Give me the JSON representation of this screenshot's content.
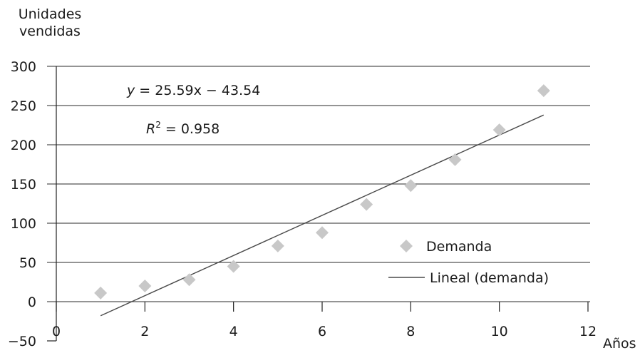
{
  "chart_data": {
    "type": "scatter",
    "ylabel_line1": "Unidades",
    "ylabel_line2": "vendidas",
    "xlabel": "Años",
    "xlim": [
      0,
      12
    ],
    "ylim": [
      -50,
      300
    ],
    "x_ticks": [
      {
        "value": 0,
        "label": "0"
      },
      {
        "value": 2,
        "label": "2"
      },
      {
        "value": 4,
        "label": "4"
      },
      {
        "value": 6,
        "label": "6"
      },
      {
        "value": 8,
        "label": "8"
      },
      {
        "value": 10,
        "label": "10"
      },
      {
        "value": 12,
        "label": "12"
      }
    ],
    "y_ticks": [
      {
        "value": -50,
        "label": "−50"
      },
      {
        "value": 0,
        "label": "0"
      },
      {
        "value": 50,
        "label": "50"
      },
      {
        "value": 100,
        "label": "100"
      },
      {
        "value": 150,
        "label": "150"
      },
      {
        "value": 200,
        "label": "200"
      },
      {
        "value": 250,
        "label": "250"
      },
      {
        "value": 300,
        "label": "300"
      }
    ],
    "grid": "horizontal",
    "legend_position": "bottom-right",
    "series": [
      {
        "name": "Demanda",
        "marker": "diamond",
        "color": "#c8c8c8",
        "points": [
          {
            "x": 1,
            "y": 11
          },
          {
            "x": 2,
            "y": 20
          },
          {
            "x": 3,
            "y": 28
          },
          {
            "x": 4,
            "y": 45
          },
          {
            "x": 5,
            "y": 71
          },
          {
            "x": 6,
            "y": 88
          },
          {
            "x": 7,
            "y": 124
          },
          {
            "x": 8,
            "y": 148
          },
          {
            "x": 9,
            "y": 181
          },
          {
            "x": 10,
            "y": 219
          },
          {
            "x": 11,
            "y": 269
          }
        ]
      }
    ],
    "trendline": {
      "name": "Lineal (demanda)",
      "color": "#4a4a4a",
      "slope": 25.59,
      "intercept": -43.54,
      "x_range": [
        1,
        11
      ]
    },
    "annotations": {
      "equation_y": "y",
      "equation_rest": " = 25.59x − 43.54",
      "r2_r": "R",
      "r2_sup": "2",
      "r2_rest": " = 0.958"
    },
    "colors": {
      "axis": "#222222",
      "grid": "#555555",
      "marker": "#c8c8c8",
      "trendline": "#4a4a4a"
    }
  }
}
